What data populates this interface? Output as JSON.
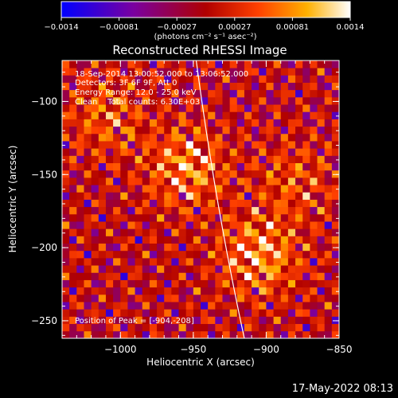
{
  "chart_data": {
    "type": "heatmap",
    "title": "Reconstructed RHESSI Image",
    "xlabel": "Heliocentric X (arcsec)",
    "ylabel": "Heliocentric Y (arcsec)",
    "xlim": [
      -1040,
      -850
    ],
    "ylim": [
      -262,
      -72
    ],
    "x_ticks": [
      -1000,
      -950,
      -900,
      -850
    ],
    "x_tick_labels": [
      "−1000",
      "−950",
      "−900",
      "−850"
    ],
    "y_ticks": [
      -100,
      -150,
      -200,
      -250
    ],
    "y_tick_labels": [
      "−100",
      "−150",
      "−200",
      "−250"
    ],
    "colorbar": {
      "range": [
        -0.0014,
        0.0014
      ],
      "tick_labels": [
        "−0.0014",
        "−0.00081",
        "−0.00027",
        "0.00027",
        "0.00081",
        "0.0014"
      ],
      "units_label": "(photons cm⁻² s⁻¹ asec⁻²)",
      "colors": [
        "#0000ff",
        "#7a00a0",
        "#b00000",
        "#ff4000",
        "#ffb000",
        "#ffffff"
      ]
    },
    "peak_position": [
      -904,
      -208
    ],
    "sources": [
      {
        "x": -955,
        "y": -145,
        "level": 0.55
      },
      {
        "x": -1010,
        "y": -110,
        "level": 0.35
      },
      {
        "x": -905,
        "y": -205,
        "level": 0.6
      },
      {
        "x": -880,
        "y": -155,
        "level": 0.3
      }
    ],
    "limb_curve": [
      [
        -948,
        -72
      ],
      [
        -935,
        -170
      ],
      [
        -915,
        -262
      ]
    ]
  },
  "info": {
    "time_range": "18-Sep-2014 13:00:52.000 to 13:06:52.000",
    "detectors": "Detectors: 3F 6F 9F, Att 0",
    "energy": "Energy Range: 12.0 - 25.0 keV",
    "clean": "Clean    Total counts: 6.30E+03",
    "peak": "Position of Peak = [-904,-208]"
  },
  "footer": {
    "timestamp": "17-May-2022 08:13"
  }
}
